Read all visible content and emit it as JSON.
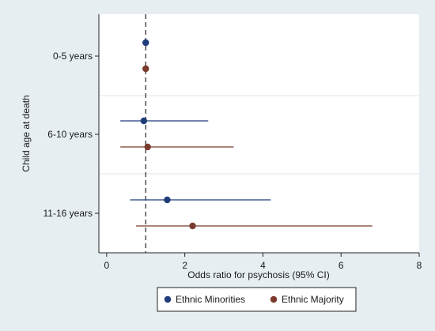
{
  "chart_data": {
    "type": "forest",
    "xlabel": "Odds ratio for psychosis (95% CI)",
    "ylabel": "Child age at death",
    "xlim": [
      -0.2,
      8
    ],
    "xticks": [
      "0",
      "2",
      "4",
      "6",
      "8"
    ],
    "reference_line": 1,
    "groups": [
      "0-5 years",
      "6-10 years",
      "11-16 years"
    ],
    "series": [
      {
        "name": "Ethnic Minorities",
        "color": "#1f3d7a",
        "points": [
          {
            "group": "0-5 years",
            "or": 1.0,
            "lo": null,
            "hi": null
          },
          {
            "group": "6-10 years",
            "or": 0.95,
            "lo": 0.35,
            "hi": 2.6
          },
          {
            "group": "11-16 years",
            "or": 1.55,
            "lo": 0.6,
            "hi": 4.2
          }
        ]
      },
      {
        "name": "Ethnic Majority",
        "color": "#7a3b2e",
        "points": [
          {
            "group": "0-5 years",
            "or": 1.0,
            "lo": null,
            "hi": null
          },
          {
            "group": "6-10 years",
            "or": 1.05,
            "lo": 0.35,
            "hi": 3.25
          },
          {
            "group": "11-16 years",
            "or": 2.2,
            "lo": 0.75,
            "hi": 6.8
          }
        ]
      }
    ],
    "grid": "horizontal",
    "legend_position": "bottom"
  }
}
